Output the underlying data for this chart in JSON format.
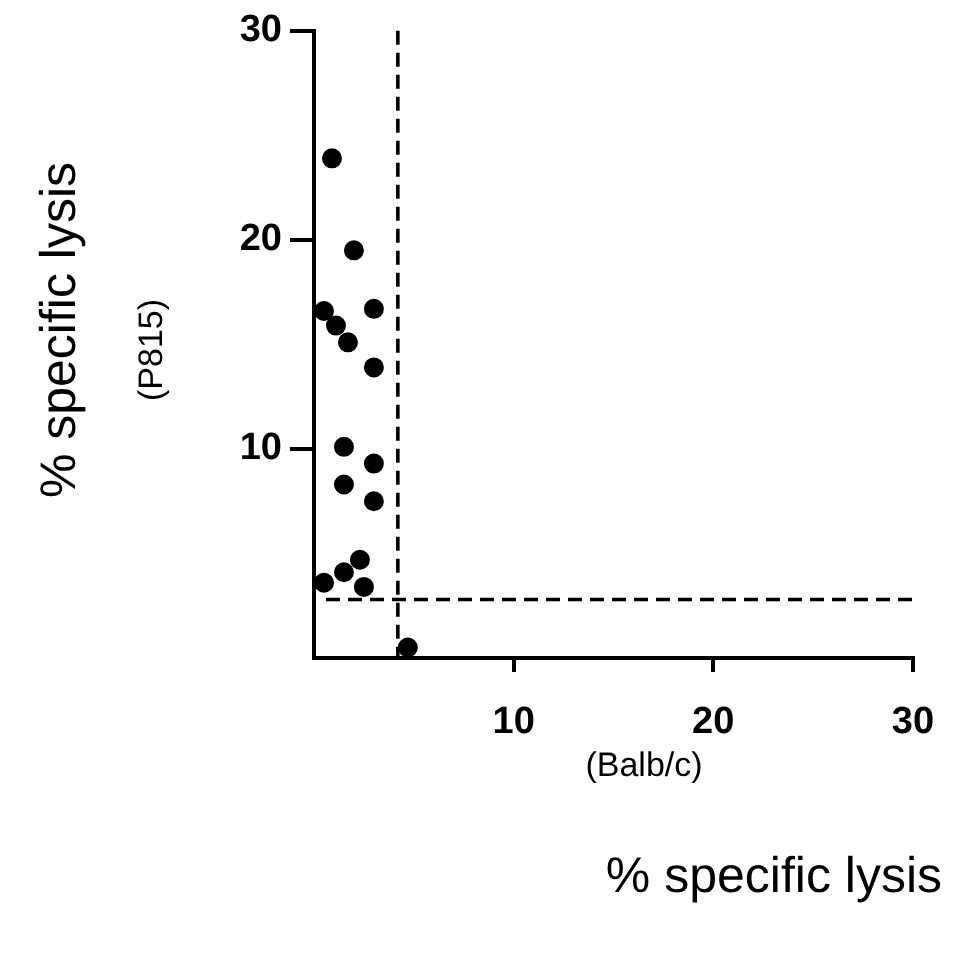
{
  "chart_data": {
    "type": "scatter",
    "xlabel": "(Balb/c)\n% specific lysis",
    "ylabel": "% specific lysis\n(P815)",
    "x": [
      0.9,
      2.0,
      0.5,
      1.1,
      1.7,
      3.0,
      3.0,
      1.5,
      1.5,
      3.0,
      3.0,
      0.5,
      1.5,
      2.3,
      2.5,
      4.7
    ],
    "series": [
      {
        "color": "#000000",
        "values": [
          23.9,
          19.5,
          16.6,
          15.9,
          15.1,
          16.7,
          13.9,
          10.1,
          8.3,
          9.3,
          7.5,
          3.6,
          4.1,
          4.7,
          3.4,
          0.5
        ]
      }
    ],
    "xlim": [
      0,
      30
    ],
    "xticks": [
      10,
      20,
      30
    ],
    "ylim": [
      0,
      30
    ],
    "yticks": [
      10,
      20,
      30
    ],
    "marker": "circle",
    "ref_lines": [
      {
        "axis": "x",
        "value": 4.2,
        "color": "#000000",
        "line_style": "dashed"
      },
      {
        "axis": "y",
        "value": 2.8,
        "color": "#000000",
        "line_style": "dashed"
      }
    ]
  }
}
